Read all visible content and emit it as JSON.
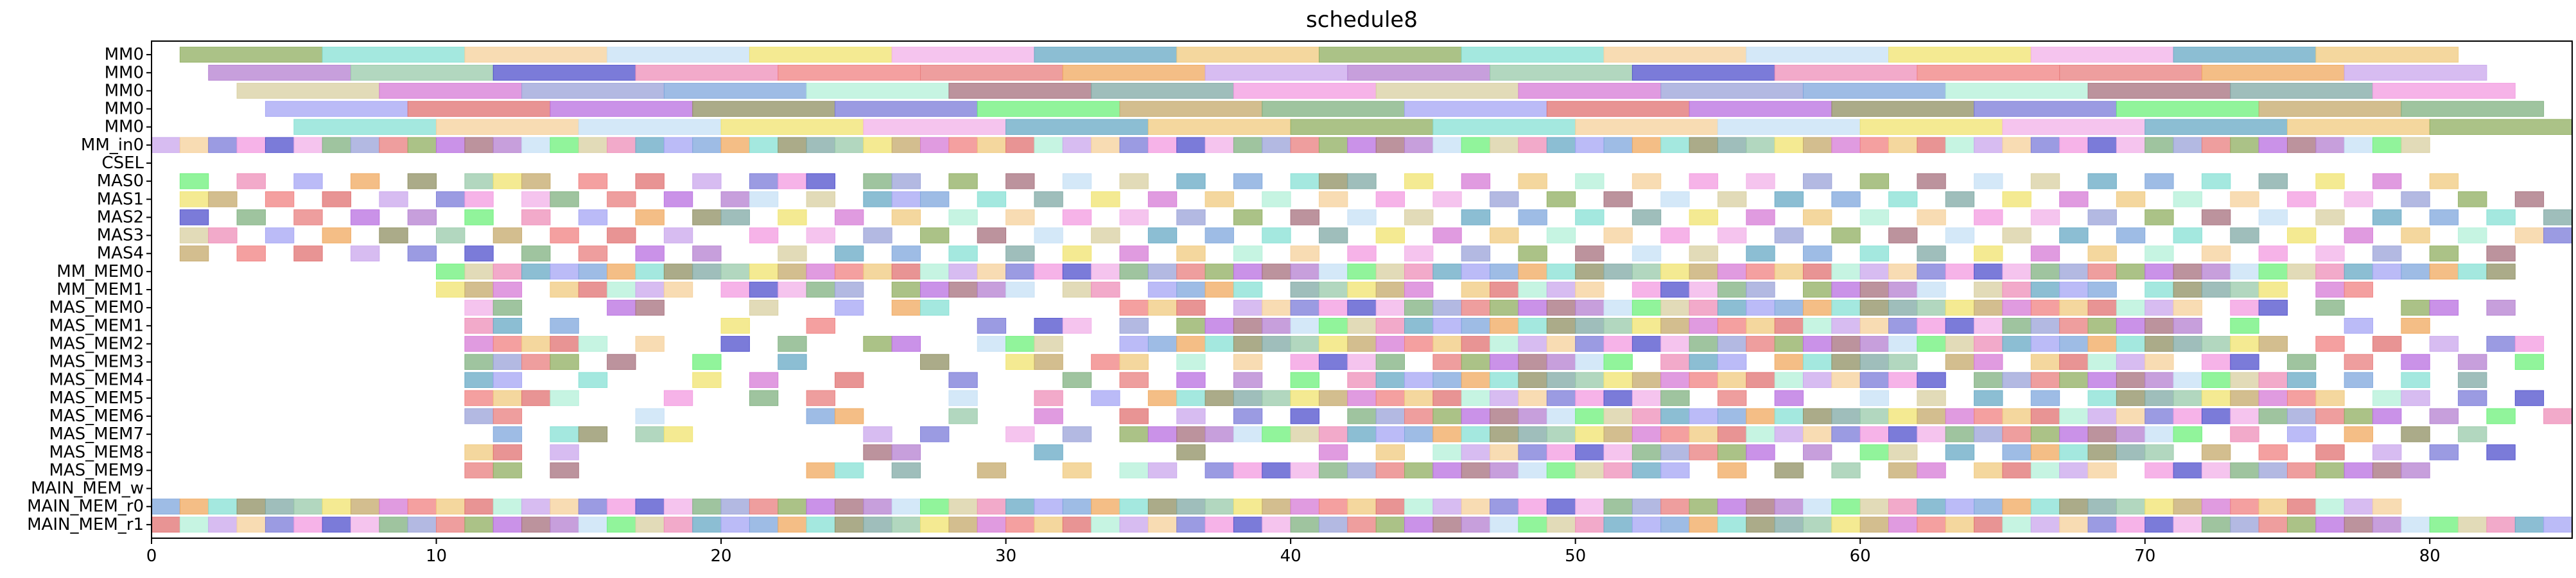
{
  "chart_data": {
    "type": "gantt",
    "title": "schedule8",
    "xlabel": "",
    "ylabel": "",
    "xlim": [
      0,
      85
    ],
    "xticks": [
      0,
      10,
      20,
      30,
      40,
      50,
      60,
      70,
      80
    ],
    "grid": false,
    "legend": "none",
    "rows": [
      "MM0",
      "MM0",
      "MM0",
      "MM0",
      "MM0",
      "MM_in0",
      "CSEL",
      "MAS0",
      "MAS1",
      "MAS2",
      "MAS3",
      "MAS4",
      "MM_MEM0",
      "MM_MEM1",
      "MAS_MEM0",
      "MAS_MEM1",
      "MAS_MEM2",
      "MAS_MEM3",
      "MAS_MEM4",
      "MAS_MEM5",
      "MAS_MEM6",
      "MAS_MEM7",
      "MAS_MEM8",
      "MAS_MEM9",
      "MAIN_MEM_w",
      "MAIN_MEM_r0",
      "MAIN_MEM_r1"
    ],
    "mm_tasks": [
      {
        "row": 0,
        "start": 1,
        "durations": [
          5,
          5,
          5,
          5,
          5,
          5,
          5,
          5,
          5,
          5,
          5,
          5,
          5,
          5,
          5,
          5,
          5,
          5,
          5,
          5,
          5,
          5,
          5,
          5,
          5,
          5,
          5,
          5
        ]
      },
      {
        "row": 1,
        "start": 2,
        "durations": [
          5,
          5,
          5,
          5,
          5,
          5,
          5,
          5,
          5,
          5,
          5,
          5,
          5,
          5,
          5,
          5,
          5,
          5,
          5,
          5,
          5,
          5,
          5,
          5,
          5,
          5,
          5,
          5
        ]
      },
      {
        "row": 2,
        "start": 3,
        "durations": [
          5,
          5,
          5,
          5,
          5,
          5,
          5,
          5,
          5,
          5,
          5,
          5,
          5,
          5,
          5,
          5,
          5,
          5,
          5,
          5,
          5,
          5,
          5,
          5,
          5,
          5,
          5,
          5
        ]
      },
      {
        "row": 3,
        "start": 4,
        "durations": [
          5,
          5,
          5,
          5,
          5,
          5,
          5,
          5,
          5,
          5,
          5,
          5,
          5,
          5,
          5,
          5,
          5,
          5,
          5,
          5,
          5,
          5,
          5,
          5,
          5,
          5,
          5,
          5
        ]
      },
      {
        "row": 4,
        "start": 5,
        "durations": [
          5,
          5,
          5,
          5,
          5,
          5,
          5,
          5,
          5,
          5,
          5,
          5,
          5,
          5,
          5,
          5,
          5,
          5,
          5,
          5,
          5,
          5,
          5,
          5,
          5,
          5,
          5,
          5
        ]
      }
    ],
    "mm_in0_span": [
      0,
      80
    ],
    "grid_tasks": {
      "MAS0": [
        1,
        3,
        5,
        7,
        9,
        11,
        12,
        13,
        15,
        17,
        19,
        21,
        22,
        23,
        25,
        26,
        28,
        30,
        32,
        34,
        36,
        38,
        40,
        41,
        42,
        44,
        46,
        48,
        50,
        52,
        54,
        56,
        58,
        60,
        62,
        64,
        66,
        68,
        70,
        72,
        74,
        76,
        78,
        80
      ],
      "MAS1": [
        1,
        2,
        4,
        6,
        8,
        10,
        11,
        13,
        14,
        16,
        18,
        20,
        21,
        23,
        25,
        26,
        27,
        29,
        31,
        33,
        35,
        37,
        39,
        41,
        43,
        45,
        47,
        49,
        51,
        53,
        55,
        57,
        59,
        61,
        63,
        65,
        67,
        69,
        71,
        73,
        75,
        77,
        79,
        81,
        83
      ],
      "MAS2": [
        1,
        3,
        5,
        7,
        9,
        11,
        13,
        15,
        17,
        19,
        20,
        22,
        24,
        26,
        28,
        30,
        32,
        34,
        36,
        38,
        40,
        42,
        44,
        46,
        48,
        50,
        52,
        54,
        56,
        58,
        60,
        62,
        64,
        66,
        68,
        70,
        72,
        74,
        76,
        78,
        80,
        82,
        84
      ],
      "MAS3": [
        1,
        2,
        4,
        6,
        8,
        10,
        12,
        14,
        16,
        18,
        21,
        23,
        25,
        27,
        29,
        31,
        33,
        35,
        37,
        39,
        41,
        43,
        45,
        47,
        49,
        51,
        53,
        55,
        57,
        59,
        61,
        63,
        65,
        67,
        69,
        71,
        73,
        75,
        77,
        79,
        81,
        83,
        84
      ],
      "MAS4": [
        1,
        3,
        5,
        7,
        9,
        11,
        13,
        15,
        17,
        19,
        22,
        24,
        26,
        28,
        30,
        32,
        34,
        36,
        38,
        40,
        42,
        44,
        46,
        48,
        50,
        52,
        54,
        56,
        58,
        60,
        62,
        64,
        66,
        68,
        70,
        72,
        74,
        76,
        78,
        80,
        82
      ],
      "MM_MEM0": [
        10,
        11,
        12,
        13,
        14,
        15,
        16,
        17,
        18,
        19,
        20,
        21,
        22,
        23,
        24,
        25,
        26,
        27,
        28,
        29,
        30,
        31,
        32,
        33,
        34,
        35,
        36,
        37,
        38,
        39,
        40,
        41,
        42,
        43,
        44,
        45,
        46,
        47,
        48,
        49,
        50,
        51,
        52,
        53,
        54,
        55,
        56,
        57,
        58,
        59,
        60,
        61,
        62,
        63,
        64,
        65,
        66,
        67,
        68,
        69,
        70,
        71,
        72,
        73,
        74,
        75,
        76,
        77,
        78,
        79,
        80,
        81,
        82
      ],
      "MM_MEM1": [
        10,
        11,
        12,
        14,
        15,
        16,
        17,
        18,
        20,
        21,
        22,
        23,
        24,
        26,
        27,
        28,
        29,
        30,
        32,
        33,
        35,
        36,
        37,
        38,
        40,
        41,
        42,
        43,
        44,
        46,
        47,
        48,
        49,
        50,
        52,
        53,
        54,
        55,
        56,
        58,
        59,
        60,
        61,
        62,
        64,
        65,
        66,
        67,
        68,
        70,
        71,
        72,
        73,
        74,
        76,
        77
      ],
      "MAS_MEM0": [
        11,
        12,
        16,
        17,
        21,
        24,
        26,
        27,
        34,
        35,
        36,
        38,
        39,
        40,
        41,
        42,
        43,
        44,
        45,
        46,
        47,
        48,
        49,
        50,
        51,
        52,
        53,
        54,
        55,
        56,
        57,
        58,
        59,
        60,
        61,
        62,
        63,
        64,
        65,
        66,
        67,
        68,
        69,
        70,
        71,
        73,
        74,
        76,
        79,
        80,
        82
      ],
      "MAS_MEM1": [
        11,
        12,
        14,
        20,
        23,
        29,
        31,
        32,
        34,
        36,
        37,
        38,
        39,
        40,
        41,
        42,
        43,
        44,
        45,
        46,
        47,
        48,
        49,
        50,
        51,
        52,
        53,
        54,
        55,
        56,
        57,
        58,
        59,
        60,
        61,
        62,
        63,
        64,
        65,
        66,
        67,
        68,
        69,
        70,
        71,
        73,
        77,
        79
      ],
      "MAS_MEM2": [
        11,
        12,
        13,
        14,
        15,
        17,
        20,
        22,
        25,
        26,
        29,
        30,
        31,
        34,
        35,
        36,
        37,
        38,
        39,
        40,
        41,
        42,
        43,
        44,
        45,
        46,
        47,
        48,
        49,
        50,
        51,
        52,
        53,
        54,
        55,
        56,
        57,
        58,
        59,
        60,
        61,
        62,
        63,
        64,
        65,
        66,
        67,
        68,
        69,
        70,
        71,
        72,
        73,
        74,
        76,
        78,
        80,
        82,
        83
      ],
      "MAS_MEM3": [
        11,
        12,
        13,
        14,
        16,
        19,
        22,
        27,
        30,
        31,
        33,
        34,
        36,
        38,
        40,
        41,
        42,
        43,
        45,
        46,
        47,
        48,
        49,
        50,
        51,
        53,
        54,
        55,
        57,
        58,
        59,
        60,
        61,
        63,
        64,
        66,
        67,
        68,
        69,
        70,
        72,
        73,
        75,
        77,
        79,
        81,
        83
      ],
      "MAS_MEM4": [
        11,
        12,
        15,
        19,
        21,
        24,
        28,
        32,
        34,
        36,
        38,
        40,
        42,
        43,
        44,
        45,
        46,
        47,
        48,
        49,
        50,
        51,
        52,
        53,
        54,
        55,
        56,
        57,
        58,
        59,
        60,
        61,
        62,
        64,
        65,
        66,
        67,
        68,
        69,
        70,
        71,
        72,
        73,
        74,
        75,
        77,
        79,
        81
      ],
      "MAS_MEM5": [
        11,
        12,
        13,
        14,
        18,
        21,
        23,
        28,
        31,
        33,
        35,
        36,
        37,
        38,
        39,
        40,
        41,
        42,
        43,
        44,
        45,
        46,
        47,
        48,
        49,
        50,
        51,
        52,
        53,
        55,
        57,
        60,
        62,
        64,
        66,
        68,
        69,
        70,
        71,
        72,
        73,
        74,
        75,
        76,
        78,
        79,
        81,
        83
      ],
      "MAS_MEM6": [
        11,
        12,
        17,
        23,
        24,
        28,
        31,
        34,
        36,
        38,
        40,
        42,
        43,
        44,
        45,
        46,
        47,
        48,
        49,
        50,
        51,
        52,
        53,
        54,
        55,
        56,
        57,
        58,
        59,
        60,
        61,
        62,
        63,
        64,
        65,
        66,
        67,
        68,
        69,
        70,
        71,
        72,
        73,
        74,
        75,
        76,
        77,
        78,
        80,
        82,
        84
      ],
      "MAS_MEM7": [
        12,
        14,
        15,
        17,
        18,
        25,
        27,
        30,
        32,
        34,
        35,
        36,
        37,
        38,
        39,
        40,
        41,
        42,
        43,
        44,
        45,
        46,
        47,
        48,
        49,
        50,
        51,
        52,
        53,
        54,
        55,
        56,
        57,
        58,
        59,
        60,
        61,
        62,
        63,
        64,
        65,
        66,
        67,
        68,
        69,
        70,
        71,
        73,
        75,
        77,
        79,
        81
      ],
      "MAS_MEM8": [
        11,
        12,
        14,
        25,
        26,
        31,
        36,
        41,
        43,
        45,
        46,
        47,
        48,
        49,
        50,
        51,
        52,
        53,
        54,
        55,
        56,
        58,
        60,
        61,
        63,
        65,
        66,
        67,
        68,
        69,
        70,
        72,
        74,
        76,
        78,
        80,
        82
      ],
      "MAS_MEM9": [
        11,
        12,
        14,
        23,
        24,
        26,
        29,
        32,
        34,
        35,
        37,
        38,
        39,
        40,
        41,
        42,
        43,
        44,
        45,
        46,
        47,
        48,
        49,
        50,
        51,
        52,
        53,
        55,
        57,
        59,
        61,
        62,
        64,
        65,
        66,
        67,
        68,
        70,
        71,
        72,
        73,
        74,
        75,
        76,
        77,
        78,
        79
      ],
      "MAIN_MEM_r0": [
        0,
        1,
        2,
        3,
        4,
        5,
        6,
        7,
        8,
        9,
        10,
        11,
        12,
        13,
        14,
        15,
        16,
        17,
        18,
        19,
        20,
        21,
        22,
        23,
        24,
        25,
        26,
        27,
        28,
        29,
        30,
        31,
        32,
        33,
        34,
        35,
        36,
        37,
        38,
        39,
        40,
        41,
        42,
        43,
        44,
        45,
        46,
        47,
        48,
        49,
        50,
        51,
        52,
        53,
        54,
        55,
        56,
        57,
        58,
        59,
        60,
        61,
        62,
        63,
        64,
        65,
        66,
        67,
        68,
        69,
        70,
        71,
        72,
        73,
        74,
        75,
        76,
        77,
        78
      ],
      "MAIN_MEM_r1": [
        0,
        1,
        2,
        3,
        4,
        5,
        6,
        7,
        8,
        9,
        10,
        11,
        12,
        13,
        14,
        15,
        16,
        17,
        18,
        19,
        20,
        21,
        22,
        23,
        24,
        25,
        26,
        27,
        28,
        29,
        30,
        31,
        32,
        33,
        34,
        35,
        36,
        37,
        38,
        39,
        40,
        41,
        42,
        43,
        44,
        45,
        46,
        47,
        48,
        49,
        50,
        51,
        52,
        53,
        54,
        55,
        56,
        57,
        58,
        59,
        60,
        61,
        62,
        63,
        64,
        65,
        66,
        67,
        68,
        69,
        70,
        71,
        72,
        73,
        74,
        75,
        76,
        77,
        78,
        79,
        80,
        81,
        82,
        83,
        84
      ]
    },
    "palette": [
      "#8fae5f",
      "#c9a6ec",
      "#7fa8a4",
      "#6cf07a",
      "#f2b0e8",
      "#f08080",
      "#7ea6dc",
      "#b86ee0",
      "#f5d09a",
      "#98c9a9",
      "#d8cfa0",
      "#7fb07f",
      "#f0c97d",
      "#f0a85e",
      "#a66f7c",
      "#7a7ad8",
      "#f0e36e",
      "#ee8db8",
      "#9aa2d8",
      "#e07070",
      "#85e0d4",
      "#b47fd0",
      "#f39ae0",
      "#c4a86a",
      "#66a8c4",
      "#e87d7d",
      "#b3f0d8",
      "#8f8f62",
      "#c6e0f5",
      "#4f4fcc",
      "#d67ad6",
      "#a4a4f4"
    ]
  }
}
